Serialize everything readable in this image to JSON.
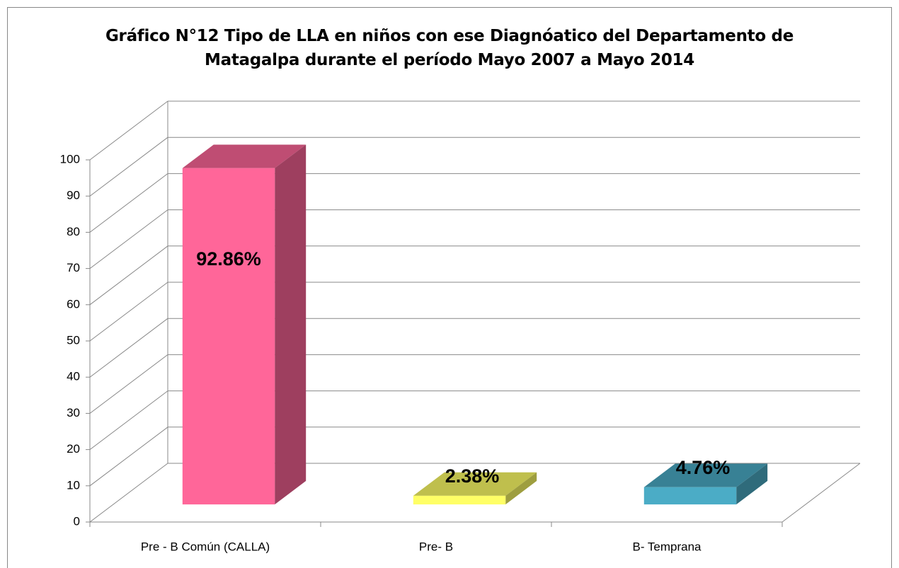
{
  "chart_data": {
    "type": "bar3d",
    "title": "Gráfico N°12 Tipo de LLA en niños con ese Diagnóatico del Departamento de Matagalpa durante el período Mayo 2007 a Mayo 2014",
    "categories": [
      "Pre - B Común (CALLA)",
      "Pre- B",
      "B- Temprana"
    ],
    "values": [
      92.86,
      2.38,
      4.76
    ],
    "value_labels": [
      "92.86%",
      "2.38%",
      "4.76%"
    ],
    "colors": [
      "#ff6699",
      "#ffff66",
      "#4bacc6"
    ],
    "ylim": [
      0,
      100
    ],
    "yticks": [
      0,
      10,
      20,
      30,
      40,
      50,
      60,
      70,
      80,
      90,
      100
    ],
    "grid": true
  }
}
